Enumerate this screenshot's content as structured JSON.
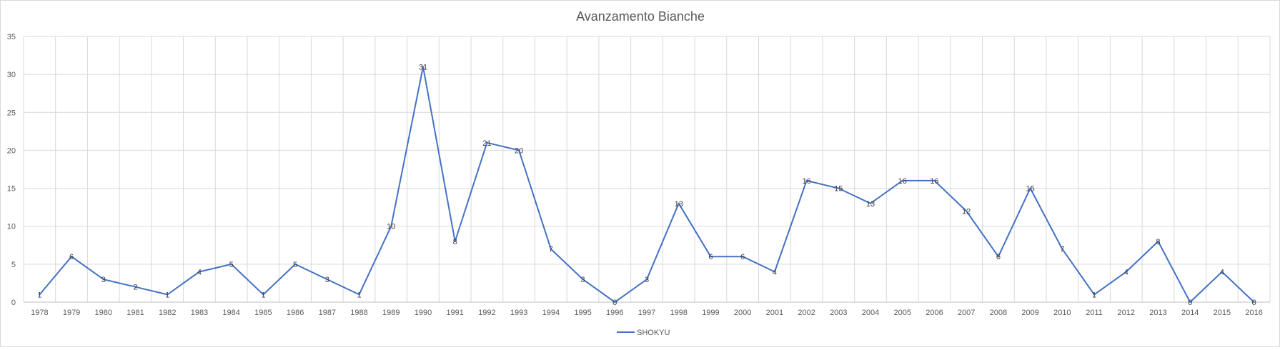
{
  "chart_data": {
    "type": "line",
    "title": "Avanzamento Bianche",
    "xlabel": "",
    "ylabel": "",
    "ylim": [
      0,
      35
    ],
    "yticks": [
      0,
      5,
      10,
      15,
      20,
      25,
      30,
      35
    ],
    "grid": "both",
    "legend_position": "bottom",
    "categories": [
      "1978",
      "1979",
      "1980",
      "1981",
      "1982",
      "1983",
      "1984",
      "1985",
      "1986",
      "1987",
      "1988",
      "1989",
      "1990",
      "1991",
      "1992",
      "1993",
      "1994",
      "1995",
      "1996",
      "1997",
      "1998",
      "1999",
      "2000",
      "2001",
      "2002",
      "2003",
      "2004",
      "2005",
      "2006",
      "2007",
      "2008",
      "2009",
      "2010",
      "2011",
      "2012",
      "2013",
      "2014",
      "2015",
      "2016"
    ],
    "series": [
      {
        "name": "SHOKYU",
        "color": "#4472c4",
        "values": [
          1,
          6,
          3,
          2,
          1,
          4,
          5,
          1,
          5,
          3,
          1,
          10,
          31,
          8,
          21,
          20,
          7,
          3,
          0,
          3,
          13,
          6,
          6,
          4,
          16,
          15,
          13,
          16,
          16,
          12,
          6,
          15,
          7,
          1,
          4,
          8,
          0,
          4,
          0
        ],
        "labels": [
          "1",
          "6",
          "3",
          "2",
          "1",
          "4",
          "5",
          "1",
          "5",
          "3",
          "1",
          "10",
          "31",
          "8",
          "21",
          "20",
          "7",
          "3",
          "0",
          "3",
          "13",
          "6",
          "6",
          "4",
          "16",
          "15",
          "13",
          "16",
          "16",
          "12",
          "6",
          "15",
          "7",
          "1",
          "4",
          "8",
          "0",
          "4",
          "0"
        ]
      }
    ]
  }
}
